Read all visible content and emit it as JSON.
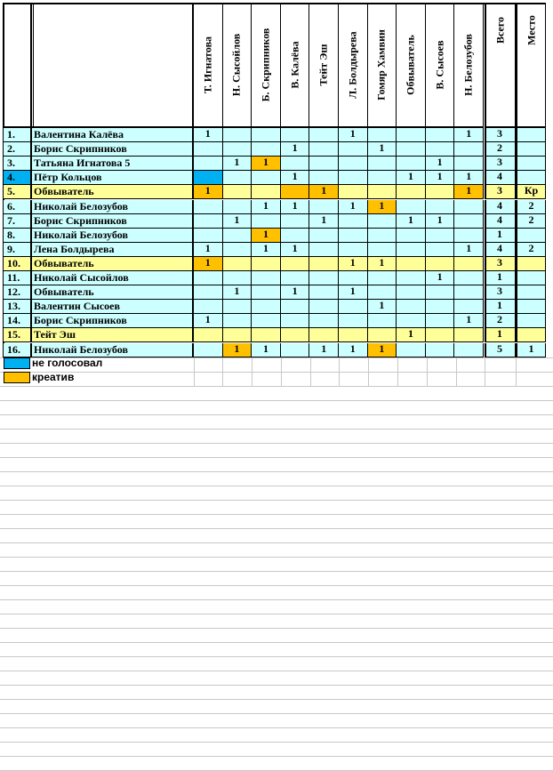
{
  "columns": [
    "Т. Игнатова",
    "Н. Сысойлов",
    "Б. Скрипников",
    "В. Калёва",
    "Тейт Эш",
    "Л. Болдырева",
    "Гомяр Хамвин",
    "Обвыватель",
    "В. Сысоев",
    "Н. Белозубов"
  ],
  "total_header": "Всего",
  "place_header": "Место",
  "colors": {
    "not_voted": "#00b0f0",
    "creative": "#ffc000",
    "row_bg": "#ccffff",
    "highlight_row": "#ffff99"
  },
  "legend": [
    {
      "label": "не голосовал",
      "color": "#00b0f0"
    },
    {
      "label": "креатив",
      "color": "#ffc000"
    }
  ],
  "rows": [
    {
      "num": "1.",
      "name": "Валентина Калёва",
      "votes": [
        "1",
        "",
        "",
        "",
        "",
        "1",
        "",
        "",
        "",
        "1"
      ],
      "total": "3",
      "place": ""
    },
    {
      "num": "2.",
      "name": "Борис Скрипников",
      "votes": [
        "",
        "",
        "",
        "1",
        "",
        "",
        "1",
        "",
        "",
        ""
      ],
      "total": "2",
      "place": ""
    },
    {
      "num": "3.",
      "name": "Татьяна Игнатова 5",
      "votes": [
        "",
        "1",
        "1",
        "",
        "",
        "",
        "",
        "",
        "1",
        ""
      ],
      "total": "3",
      "place": ""
    },
    {
      "num": "4.",
      "name": "Пётр Кольцов",
      "votes": [
        "",
        "",
        "",
        "1",
        "",
        "",
        "",
        "1",
        "1",
        "1"
      ],
      "total": "4",
      "place": ""
    },
    {
      "num": "5.",
      "name": "Обвыватель",
      "votes": [
        "1",
        "",
        "",
        "",
        "1",
        "",
        "",
        "",
        "",
        "1"
      ],
      "total": "3",
      "place": "Кр"
    },
    {
      "num": "6.",
      "name": "Николай Белозубов",
      "votes": [
        "",
        "",
        "1",
        "1",
        "",
        "1",
        "1",
        "",
        "",
        ""
      ],
      "total": "4",
      "place": "2"
    },
    {
      "num": "7.",
      "name": "Борис Скрипников",
      "votes": [
        "",
        "1",
        "",
        "",
        "1",
        "",
        "",
        "1",
        "1",
        ""
      ],
      "total": "4",
      "place": "2"
    },
    {
      "num": "8.",
      "name": "Николай Белозубов",
      "votes": [
        "",
        "",
        "1",
        "",
        "",
        "",
        "",
        "",
        "",
        ""
      ],
      "total": "1",
      "place": ""
    },
    {
      "num": "9.",
      "name": "Лена Болдырева",
      "votes": [
        "1",
        "",
        "1",
        "1",
        "",
        "",
        "",
        "",
        "",
        "1"
      ],
      "total": "4",
      "place": "2"
    },
    {
      "num": "10.",
      "name": "Обвыватель",
      "votes": [
        "1",
        "",
        "",
        "",
        "",
        "1",
        "1",
        "",
        "",
        ""
      ],
      "total": "3",
      "place": ""
    },
    {
      "num": "11.",
      "name": "Николай Сысойлов",
      "votes": [
        "",
        "",
        "",
        "",
        "",
        "",
        "",
        "",
        "1",
        ""
      ],
      "total": "1",
      "place": ""
    },
    {
      "num": "12.",
      "name": "Обвыватель",
      "votes": [
        "",
        "1",
        "",
        "1",
        "",
        "1",
        "",
        "",
        "",
        ""
      ],
      "total": "3",
      "place": ""
    },
    {
      "num": "13.",
      "name": "Валентин Сысоев",
      "votes": [
        "",
        "",
        "",
        "",
        "",
        "",
        "1",
        "",
        "",
        ""
      ],
      "total": "1",
      "place": ""
    },
    {
      "num": "14.",
      "name": "Борис Скрипников",
      "votes": [
        "1",
        "",
        "",
        "",
        "",
        "",
        "",
        "",
        "",
        "1"
      ],
      "total": "2",
      "place": ""
    },
    {
      "num": "15.",
      "name": "Тейт Эш",
      "votes": [
        "",
        "",
        "",
        "",
        "",
        "",
        "",
        "1",
        "",
        ""
      ],
      "total": "1",
      "place": ""
    },
    {
      "num": "16.",
      "name": "Николай Белозубов",
      "votes": [
        "",
        "1",
        "1",
        "",
        "1",
        "1",
        "1",
        "",
        "",
        ""
      ],
      "total": "5",
      "place": "1"
    }
  ],
  "row_styles": [
    "",
    "",
    "",
    "num-blue",
    "yellow",
    "",
    "",
    "",
    "",
    "yellow",
    "",
    "",
    "",
    "",
    "yellow",
    ""
  ],
  "creative_cells": [
    [
      2,
      2
    ],
    [
      4,
      0
    ],
    [
      4,
      3
    ],
    [
      4,
      4
    ],
    [
      4,
      9
    ],
    [
      5,
      6
    ],
    [
      7,
      2
    ],
    [
      9,
      0
    ],
    [
      15,
      1
    ],
    [
      15,
      6
    ]
  ],
  "not_voted_cells": [
    [
      3,
      0
    ],
    [
      3,
      11
    ]
  ]
}
